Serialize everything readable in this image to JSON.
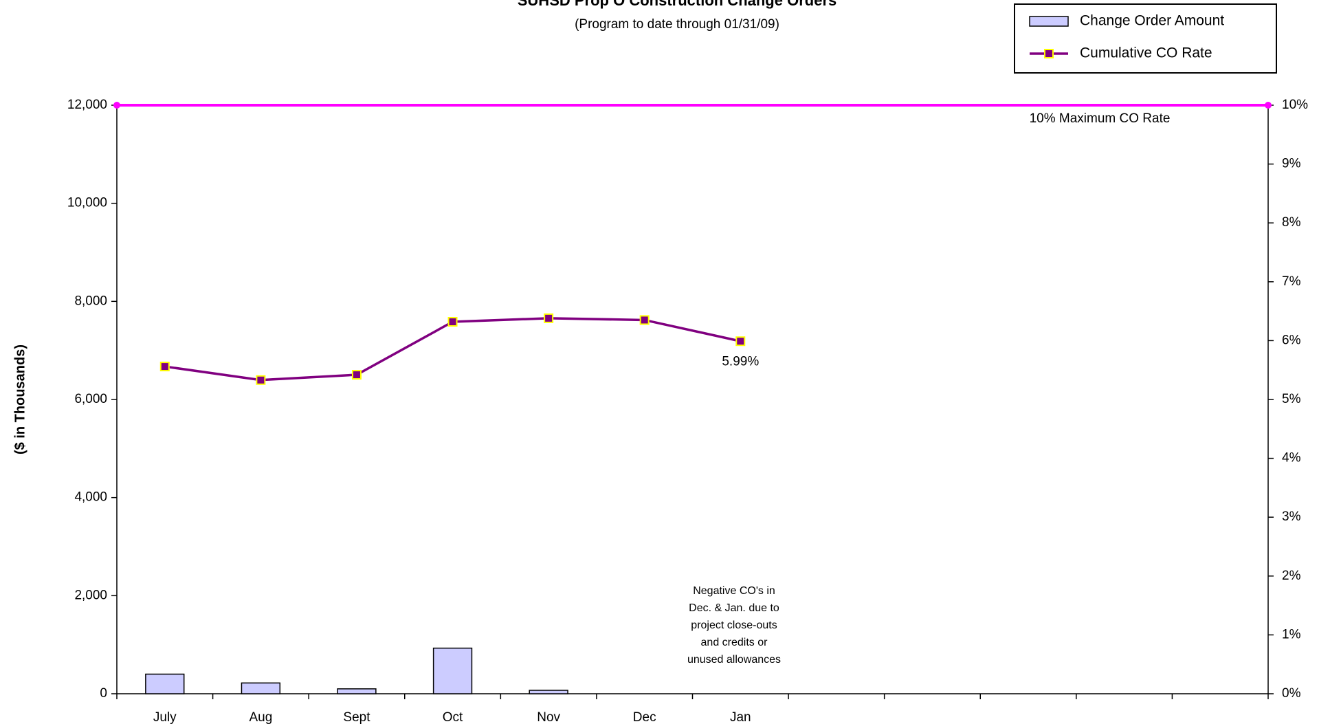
{
  "chart_data": {
    "type": "bar",
    "title": "SUHSD Prop O Construction Change Orders",
    "subtitle": "(Program to date through 01/31/09)",
    "y_label": "($ in Thousands)",
    "categories": [
      "July",
      "Aug",
      "Sept",
      "Oct",
      "Nov",
      "Dec",
      "Jan",
      null,
      null,
      null,
      null,
      null
    ],
    "series": [
      {
        "name": "Change Order Amount",
        "type": "bar",
        "color": "#ccccff",
        "values": [
          400,
          220,
          100,
          930,
          70,
          null,
          null,
          null,
          null,
          null,
          null,
          null
        ]
      },
      {
        "name": "Cumulative CO Rate",
        "type": "line",
        "axis": "y2",
        "color": "#800080",
        "marker_color": "#ffff00",
        "values": [
          5.56,
          5.33,
          5.42,
          6.32,
          6.38,
          6.35,
          5.99,
          null,
          null,
          null,
          null,
          null
        ],
        "value_labels": [
          null,
          null,
          null,
          null,
          null,
          null,
          "5.99%",
          null,
          null,
          null,
          null,
          null
        ]
      }
    ],
    "max_line": {
      "value": 10,
      "axis": "y2",
      "color": "#ff00ff",
      "label": "10% Maximum CO Rate"
    },
    "annotation": [
      "Negative CO's in",
      "Dec. & Jan. due to",
      "project close-outs",
      "and credits or",
      "unused allowances"
    ],
    "ylim": [
      0,
      12000
    ],
    "yticks": [
      0,
      {
        "value": 2000,
        "label": "2,000"
      },
      {
        "value": 4000,
        "label": "4,000"
      },
      {
        "value": 6000,
        "label": "6,000"
      },
      {
        "value": 8000,
        "label": "8,000"
      },
      {
        "value": 10000,
        "label": "10,000"
      },
      {
        "value": 12000,
        "label": "12,000"
      }
    ],
    "y2lim": [
      0,
      10
    ],
    "y2ticks": [
      {
        "value": 0,
        "label": "0%"
      },
      {
        "value": 1,
        "label": "1%"
      },
      {
        "value": 2,
        "label": "2%"
      },
      {
        "value": 3,
        "label": "3%"
      },
      {
        "value": 4,
        "label": "4%"
      },
      {
        "value": 5,
        "label": "5%"
      },
      {
        "value": 6,
        "label": "6%"
      },
      {
        "value": 7,
        "label": "7%"
      },
      {
        "value": 8,
        "label": "8%"
      },
      {
        "value": 9,
        "label": "9%"
      },
      {
        "value": 10,
        "label": "10%"
      }
    ],
    "legend": "top-right"
  }
}
